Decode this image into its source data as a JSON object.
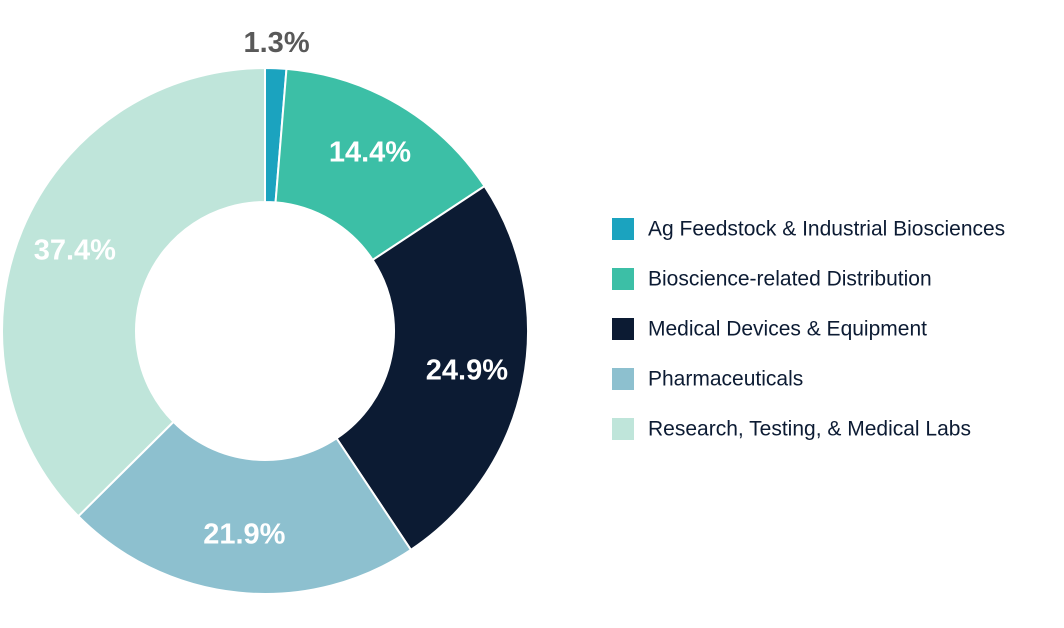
{
  "chart_data": {
    "type": "pie",
    "style": "donut",
    "categories": [
      "Ag Feedstock & Industrial Biosciences",
      "Bioscience-related Distribution",
      "Medical Devices & Equipment",
      "Pharmaceuticals",
      "Research, Testing, & Medical Labs"
    ],
    "values": [
      1.3,
      14.4,
      24.9,
      21.9,
      37.4
    ],
    "data_labels": [
      "1.3%",
      "14.4%",
      "24.9%",
      "21.9%",
      "37.4%"
    ],
    "unit": "%",
    "colors": [
      "#1ba3bf",
      "#3cbfa6",
      "#0c1b33",
      "#8dc0cf",
      "#bfe5da"
    ],
    "label_colors": [
      "#595959",
      "#ffffff",
      "#ffffff",
      "#ffffff",
      "#ffffff"
    ],
    "start_angle": "12 o'clock",
    "direction": "clockwise",
    "legend_position": "right",
    "title": ""
  }
}
